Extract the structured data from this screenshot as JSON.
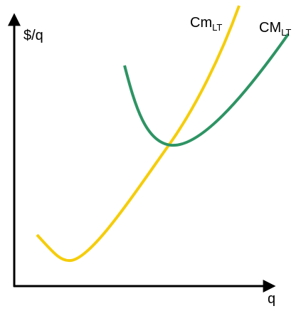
{
  "axes": {
    "y_label": "$/q",
    "x_label": "q"
  },
  "curves": [
    {
      "label": "Cm",
      "subscript": "LT"
    },
    {
      "label": "CM",
      "subscript": "LT"
    }
  ]
}
